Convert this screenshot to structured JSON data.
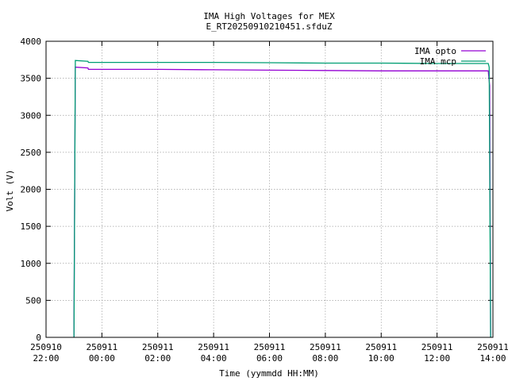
{
  "chart_data": {
    "type": "line",
    "title": "IMA High Voltages for MEX",
    "subtitle": "E_RT20250910210451.sfduZ",
    "xlabel": "Time (yymmdd HH:MM)",
    "ylabel": "Volt (V)",
    "x_range": [
      "2025-09-10 22:00",
      "2025-09-11 14:00"
    ],
    "ylim": [
      0,
      4000
    ],
    "grid": true,
    "legend_position": "top-right",
    "x_ticks": [
      {
        "t": "2025-09-10 22:00",
        "date": "250910",
        "time": "22:00"
      },
      {
        "t": "2025-09-11 00:00",
        "date": "250911",
        "time": "00:00"
      },
      {
        "t": "2025-09-11 02:00",
        "date": "250911",
        "time": "02:00"
      },
      {
        "t": "2025-09-11 04:00",
        "date": "250911",
        "time": "04:00"
      },
      {
        "t": "2025-09-11 06:00",
        "date": "250911",
        "time": "06:00"
      },
      {
        "t": "2025-09-11 08:00",
        "date": "250911",
        "time": "08:00"
      },
      {
        "t": "2025-09-11 10:00",
        "date": "250911",
        "time": "10:00"
      },
      {
        "t": "2025-09-11 12:00",
        "date": "250911",
        "time": "12:00"
      },
      {
        "t": "2025-09-11 14:00",
        "date": "250911",
        "time": "14:00"
      }
    ],
    "y_ticks": [
      0,
      500,
      1000,
      1500,
      2000,
      2500,
      3000,
      3500,
      4000
    ],
    "series": [
      {
        "name": "IMA opto",
        "color": "#9400d3",
        "points": [
          {
            "t": "2025-09-10 23:00",
            "v": 0
          },
          {
            "t": "2025-09-10 23:00",
            "v": 200
          },
          {
            "t": "2025-09-10 23:03",
            "v": 3650
          },
          {
            "t": "2025-09-10 23:30",
            "v": 3640
          },
          {
            "t": "2025-09-10 23:31",
            "v": 3620
          },
          {
            "t": "2025-09-11 02:00",
            "v": 3620
          },
          {
            "t": "2025-09-11 04:00",
            "v": 3615
          },
          {
            "t": "2025-09-11 06:00",
            "v": 3610
          },
          {
            "t": "2025-09-11 08:00",
            "v": 3605
          },
          {
            "t": "2025-09-11 10:00",
            "v": 3600
          },
          {
            "t": "2025-09-11 12:00",
            "v": 3600
          },
          {
            "t": "2025-09-11 13:50",
            "v": 3600
          },
          {
            "t": "2025-09-11 13:53",
            "v": 3400
          },
          {
            "t": "2025-09-11 13:55",
            "v": 0
          }
        ]
      },
      {
        "name": "IMA mcp",
        "color": "#009e73",
        "points": [
          {
            "t": "2025-09-10 23:00",
            "v": 0
          },
          {
            "t": "2025-09-10 23:03",
            "v": 3740
          },
          {
            "t": "2025-09-10 23:30",
            "v": 3730
          },
          {
            "t": "2025-09-10 23:31",
            "v": 3715
          },
          {
            "t": "2025-09-11 02:00",
            "v": 3715
          },
          {
            "t": "2025-09-11 04:00",
            "v": 3715
          },
          {
            "t": "2025-09-11 06:00",
            "v": 3710
          },
          {
            "t": "2025-09-11 08:00",
            "v": 3705
          },
          {
            "t": "2025-09-11 10:00",
            "v": 3705
          },
          {
            "t": "2025-09-11 12:00",
            "v": 3700
          },
          {
            "t": "2025-09-11 13:50",
            "v": 3700
          },
          {
            "t": "2025-09-11 13:52",
            "v": 3650
          },
          {
            "t": "2025-09-11 13:55",
            "v": 0
          }
        ]
      }
    ]
  }
}
